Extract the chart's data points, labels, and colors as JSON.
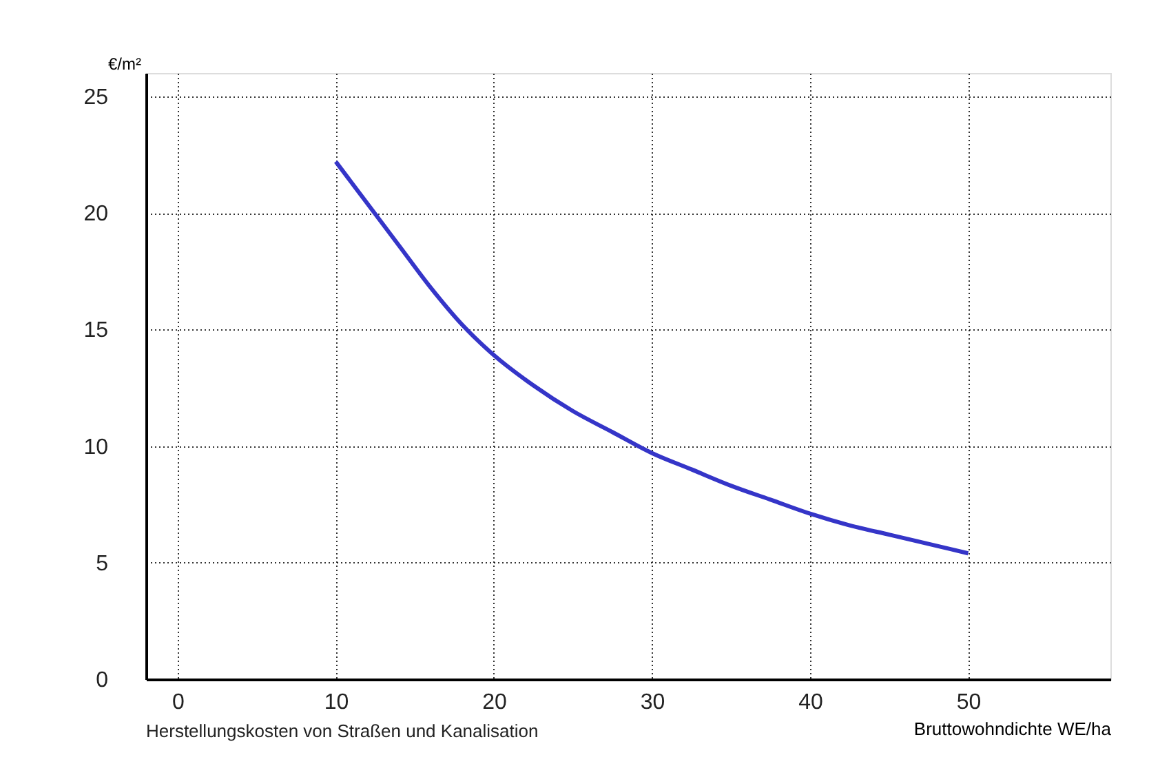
{
  "chart_data": {
    "type": "line",
    "xlabel": "Bruttowohndichte WE/ha",
    "ylabel": "€/m²",
    "annotations": [
      "Herstellungskosten von Straßen und Kanalisation"
    ],
    "x": [
      10,
      12,
      14,
      16,
      18,
      20,
      22.5,
      25,
      27.5,
      30,
      32.5,
      35,
      37.5,
      40,
      42.5,
      45,
      47.5,
      50
    ],
    "series": [
      {
        "color": "#3535c8",
        "values": [
          22.2,
          20.4,
          18.6,
          16.8,
          15.2,
          13.9,
          12.6,
          11.5,
          10.6,
          9.7,
          9.0,
          8.3,
          7.7,
          7.1,
          6.6,
          6.2,
          5.8,
          5.4
        ]
      }
    ],
    "xlim": [
      -2,
      59
    ],
    "ylim": [
      0,
      26
    ],
    "xticks": [
      0,
      10,
      20,
      30,
      40,
      50
    ],
    "yticks": [
      0,
      5,
      10,
      15,
      20,
      25
    ],
    "grid": true,
    "marker": "none",
    "line_style": "solid"
  }
}
